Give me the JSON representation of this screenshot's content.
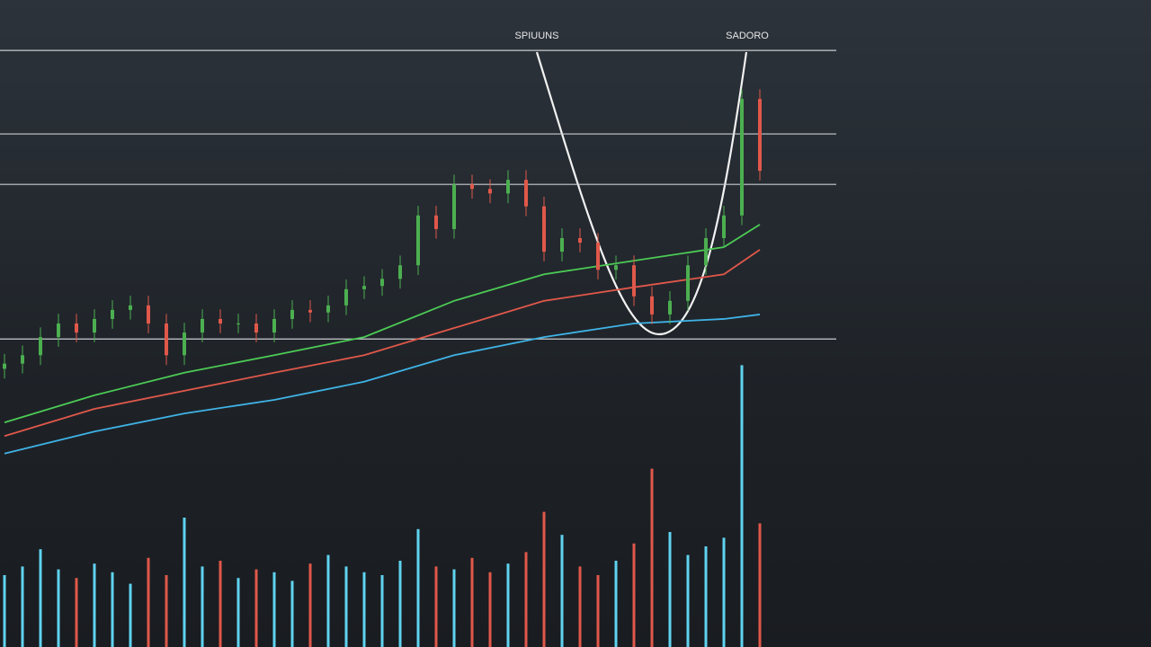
{
  "chart_data": {
    "type": "candlestick",
    "annotations": [
      "SPIUUNS",
      "SADORO"
    ],
    "xlim": [
      -0.25,
      63.75
    ],
    "ylim": [
      0,
      100
    ],
    "volume_ylim": [
      0,
      100
    ],
    "up_color": "#4caf50",
    "down_color": "#e0584a",
    "volume_up_color": "#5fd3f0",
    "volume_down_color": "#e0584a",
    "hline_color": "#c9ccd0",
    "hlines": [
      92.2,
      79.3,
      71.5,
      47.6
    ],
    "x": [
      0,
      1,
      2,
      3,
      4,
      5,
      6,
      7,
      8,
      9,
      10,
      11,
      12,
      13,
      14,
      15,
      16,
      17,
      18,
      19,
      20,
      21,
      22,
      23,
      24,
      25,
      26,
      27,
      28,
      29,
      30,
      31,
      32,
      33,
      34,
      35,
      36,
      37,
      38,
      39,
      40,
      41,
      42
    ],
    "open": [
      43,
      43.8,
      45.1,
      47.9,
      50,
      48.6,
      50.7,
      52.1,
      52.8,
      50,
      45.1,
      48.6,
      50.7,
      50,
      50,
      48.6,
      50.7,
      52.1,
      51.7,
      52.8,
      55.3,
      55.8,
      56.9,
      59,
      66.7,
      64.6,
      71.5,
      70.8,
      70.1,
      72.2,
      68.1,
      61.1,
      63.2,
      62.5,
      58.3,
      59,
      54.2,
      51.4,
      53.5,
      59,
      63.2,
      66.7,
      84.7
    ],
    "close": [
      43.8,
      45.1,
      47.9,
      50,
      48.6,
      50.7,
      52.1,
      52.8,
      50,
      45.1,
      48.6,
      50.7,
      50,
      50,
      48.6,
      50.7,
      52.1,
      51.7,
      52.8,
      55.3,
      55.8,
      56.9,
      59,
      66.7,
      64.6,
      71.5,
      70.8,
      70.1,
      72.2,
      68.1,
      61.1,
      63.2,
      62.5,
      58.3,
      59,
      54.2,
      51.4,
      53.5,
      59,
      63.2,
      66.7,
      84.7,
      73.6
    ],
    "high": [
      45.3,
      46.6,
      49.4,
      51.5,
      51.5,
      52.2,
      53.6,
      54.3,
      54.3,
      51.5,
      50.1,
      52.2,
      52.2,
      51.5,
      51.5,
      52.2,
      53.6,
      53.6,
      54.3,
      56.8,
      57.3,
      58.4,
      60.5,
      68.2,
      68.2,
      73,
      73,
      72.3,
      73.7,
      73.7,
      69.6,
      64.7,
      64.7,
      64,
      60.5,
      60.5,
      55.7,
      55,
      60.5,
      64.7,
      68.2,
      86.2,
      86.2
    ],
    "low": [
      41.5,
      42.3,
      43.6,
      46.4,
      47.1,
      47.1,
      49.2,
      50.6,
      48.5,
      43.6,
      43.6,
      47.1,
      48.5,
      48.5,
      47.1,
      47.1,
      49.2,
      50.2,
      50.2,
      51.3,
      53.8,
      54.3,
      55.4,
      57.5,
      63.1,
      63.1,
      69.3,
      68.6,
      68.6,
      66.6,
      59.6,
      59.6,
      61,
      56.8,
      56.8,
      52.7,
      49.9,
      49.9,
      52,
      57.5,
      61.7,
      65.2,
      72.1
    ],
    "volume": [
      25,
      28,
      34,
      27,
      24,
      29,
      26,
      22,
      31,
      25,
      45,
      28,
      30,
      24,
      27,
      26,
      23,
      29,
      32,
      28,
      26,
      25,
      30,
      41,
      28,
      27,
      31,
      26,
      29,
      33,
      47,
      39,
      28,
      25,
      30,
      36,
      62,
      40,
      32,
      35,
      38,
      98,
      43
    ],
    "moving_averages": [
      {
        "color": "#4ccb55",
        "x": [
          0,
          5,
          10,
          15,
          20,
          25,
          30,
          35,
          40,
          42
        ],
        "values": [
          34.7,
          38.9,
          42.4,
          45.1,
          47.9,
          53.5,
          57.6,
          59.7,
          61.8,
          65.3
        ]
      },
      {
        "color": "#e0584a",
        "x": [
          0,
          5,
          10,
          15,
          20,
          25,
          30,
          35,
          40,
          42
        ],
        "values": [
          32.6,
          36.8,
          39.6,
          42.4,
          45.1,
          49.3,
          53.5,
          55.6,
          57.6,
          61.4
        ]
      },
      {
        "color": "#3fb3e6",
        "x": [
          0,
          5,
          10,
          15,
          20,
          25,
          30,
          35,
          40,
          42
        ],
        "values": [
          29.9,
          33.3,
          36.1,
          38.2,
          41,
          45.1,
          47.9,
          50,
          50.7,
          51.4
        ]
      }
    ]
  }
}
